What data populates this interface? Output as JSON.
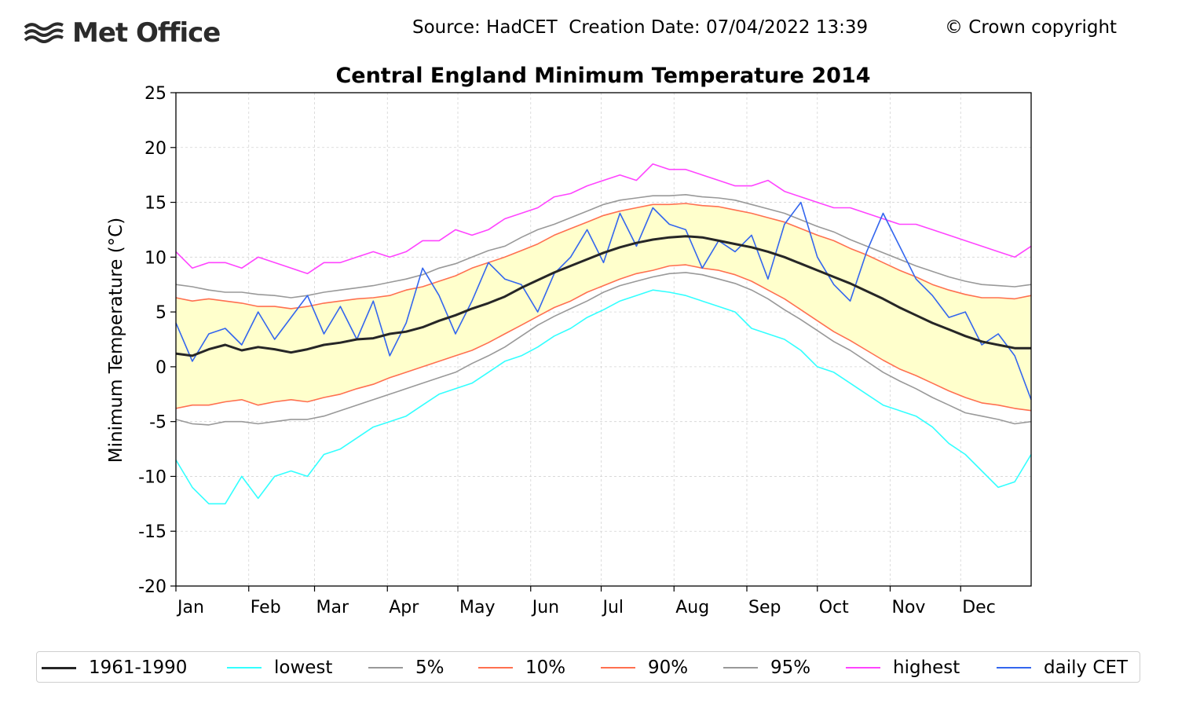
{
  "header": {
    "brand": "Met Office",
    "source": "Source: HadCET  Creation Date: 07/04/2022 13:39",
    "copyright": "© Crown copyright"
  },
  "icons": {
    "logo": "met-office-wave-icon"
  },
  "legend": {
    "items": [
      {
        "label": "1961-1990",
        "color": "#262626"
      },
      {
        "label": "lowest",
        "color": "#33ffff"
      },
      {
        "label": "5%",
        "color": "#999999"
      },
      {
        "label": "10%",
        "color": "#ff7050"
      },
      {
        "label": "90%",
        "color": "#ff7050"
      },
      {
        "label": "95%",
        "color": "#999999"
      },
      {
        "label": "highest",
        "color": "#ff44ff"
      },
      {
        "label": "daily CET",
        "color": "#3366ee"
      }
    ]
  },
  "chart_data": {
    "type": "line",
    "title": "Central England Minimum Temperature 2014",
    "ylabel": "Minimum Temperature (°C)",
    "xlabel": "",
    "ylim": [
      -20,
      25
    ],
    "yticks": [
      25,
      20,
      15,
      10,
      5,
      0,
      -5,
      -10,
      -15,
      -20
    ],
    "ytick_labels": [
      "25",
      "20",
      "15",
      "10",
      "5",
      "0",
      "-5",
      "-10",
      "-15",
      "-20"
    ],
    "months": [
      "Jan",
      "Feb",
      "Mar",
      "Apr",
      "May",
      "Jun",
      "Jul",
      "Aug",
      "Sep",
      "Oct",
      "Nov",
      "Dec"
    ],
    "month_start_day": [
      1,
      32,
      60,
      91,
      121,
      152,
      182,
      213,
      244,
      274,
      305,
      335
    ],
    "xlim": [
      1,
      365
    ],
    "grid": true,
    "shaded_band": {
      "between": [
        "10%",
        "90%"
      ],
      "color": "#ffffcc"
    },
    "legend_position": "bottom",
    "sample_interval_days": 7,
    "x": [
      1,
      8,
      15,
      22,
      29,
      36,
      43,
      50,
      57,
      64,
      71,
      78,
      85,
      92,
      99,
      106,
      113,
      120,
      127,
      134,
      141,
      148,
      155,
      162,
      169,
      176,
      183,
      190,
      197,
      204,
      211,
      218,
      225,
      232,
      239,
      246,
      253,
      260,
      267,
      274,
      281,
      288,
      295,
      302,
      309,
      316,
      323,
      330,
      337,
      344,
      351,
      358,
      365
    ],
    "series": [
      {
        "name": "1961-1990",
        "color": "#262626",
        "values": [
          1.2,
          1.0,
          1.6,
          2.0,
          1.5,
          1.8,
          1.6,
          1.3,
          1.6,
          2.0,
          2.2,
          2.5,
          2.6,
          3.0,
          3.2,
          3.6,
          4.2,
          4.7,
          5.3,
          5.8,
          6.4,
          7.2,
          7.9,
          8.6,
          9.2,
          9.8,
          10.4,
          10.9,
          11.3,
          11.6,
          11.8,
          11.9,
          11.8,
          11.5,
          11.2,
          10.9,
          10.5,
          10.0,
          9.4,
          8.8,
          8.2,
          7.6,
          6.9,
          6.2,
          5.4,
          4.7,
          4.0,
          3.4,
          2.8,
          2.3,
          2.0,
          1.7,
          1.7
        ]
      },
      {
        "name": "lowest",
        "color": "#33ffff",
        "values": [
          -8.5,
          -11.0,
          -12.5,
          -12.5,
          -10.0,
          -12.0,
          -10.0,
          -9.5,
          -10.0,
          -8.0,
          -7.5,
          -6.5,
          -5.5,
          -5.0,
          -4.5,
          -3.5,
          -2.5,
          -2.0,
          -1.5,
          -0.5,
          0.5,
          1.0,
          1.8,
          2.8,
          3.5,
          4.5,
          5.2,
          6.0,
          6.5,
          7.0,
          6.8,
          6.5,
          6.0,
          5.5,
          5.0,
          3.5,
          3.0,
          2.5,
          1.5,
          0.0,
          -0.5,
          -1.5,
          -2.5,
          -3.5,
          -4.0,
          -4.5,
          -5.5,
          -7.0,
          -8.0,
          -9.5,
          -11.0,
          -10.5,
          -8.0
        ]
      },
      {
        "name": "5%",
        "color": "#999999",
        "values": [
          -4.8,
          -5.2,
          -5.3,
          -5.0,
          -5.0,
          -5.2,
          -5.0,
          -4.8,
          -4.8,
          -4.5,
          -4.0,
          -3.5,
          -3.0,
          -2.5,
          -2.0,
          -1.5,
          -1.0,
          -0.5,
          0.3,
          1.0,
          1.8,
          2.8,
          3.8,
          4.6,
          5.3,
          6.0,
          6.8,
          7.4,
          7.8,
          8.2,
          8.5,
          8.6,
          8.4,
          8.0,
          7.6,
          7.0,
          6.2,
          5.2,
          4.3,
          3.3,
          2.3,
          1.5,
          0.5,
          -0.5,
          -1.3,
          -2.0,
          -2.8,
          -3.5,
          -4.2,
          -4.5,
          -4.8,
          -5.2,
          -5.0
        ]
      },
      {
        "name": "10%",
        "color": "#ff7050",
        "values": [
          -3.8,
          -3.5,
          -3.5,
          -3.2,
          -3.0,
          -3.5,
          -3.2,
          -3.0,
          -3.2,
          -2.8,
          -2.5,
          -2.0,
          -1.6,
          -1.0,
          -0.5,
          0.0,
          0.5,
          1.0,
          1.5,
          2.2,
          3.0,
          3.8,
          4.6,
          5.4,
          6.0,
          6.8,
          7.4,
          8.0,
          8.5,
          8.8,
          9.2,
          9.3,
          9.0,
          8.8,
          8.4,
          7.8,
          7.0,
          6.2,
          5.2,
          4.2,
          3.2,
          2.4,
          1.5,
          0.6,
          -0.2,
          -0.8,
          -1.5,
          -2.2,
          -2.8,
          -3.3,
          -3.5,
          -3.8,
          -4.0
        ]
      },
      {
        "name": "90%",
        "color": "#ff7050",
        "values": [
          6.3,
          6.0,
          6.2,
          6.0,
          5.8,
          5.5,
          5.5,
          5.3,
          5.5,
          5.8,
          6.0,
          6.2,
          6.3,
          6.5,
          7.0,
          7.3,
          7.8,
          8.3,
          9.0,
          9.5,
          10.0,
          10.6,
          11.2,
          12.0,
          12.6,
          13.2,
          13.8,
          14.2,
          14.5,
          14.8,
          14.8,
          14.9,
          14.7,
          14.6,
          14.3,
          14.0,
          13.6,
          13.2,
          12.6,
          12.0,
          11.5,
          10.8,
          10.2,
          9.5,
          8.8,
          8.2,
          7.5,
          7.0,
          6.6,
          6.3,
          6.3,
          6.2,
          6.5
        ]
      },
      {
        "name": "95%",
        "color": "#999999",
        "values": [
          7.5,
          7.3,
          7.0,
          6.8,
          6.8,
          6.6,
          6.5,
          6.3,
          6.5,
          6.8,
          7.0,
          7.2,
          7.4,
          7.7,
          8.0,
          8.4,
          9.0,
          9.4,
          10.0,
          10.6,
          11.0,
          11.8,
          12.5,
          13.0,
          13.6,
          14.2,
          14.8,
          15.2,
          15.4,
          15.6,
          15.6,
          15.7,
          15.5,
          15.4,
          15.2,
          14.8,
          14.4,
          14.0,
          13.4,
          12.8,
          12.3,
          11.6,
          11.0,
          10.4,
          9.8,
          9.2,
          8.7,
          8.2,
          7.8,
          7.5,
          7.4,
          7.3,
          7.5
        ]
      },
      {
        "name": "highest",
        "color": "#ff44ff",
        "values": [
          10.5,
          9.0,
          9.5,
          9.5,
          9.0,
          10.0,
          9.5,
          9.0,
          8.5,
          9.5,
          9.5,
          10.0,
          10.5,
          10.0,
          10.5,
          11.5,
          11.5,
          12.5,
          12.0,
          12.5,
          13.5,
          14.0,
          14.5,
          15.5,
          15.8,
          16.5,
          17.0,
          17.5,
          17.0,
          18.5,
          18.0,
          18.0,
          17.5,
          17.0,
          16.5,
          16.5,
          17.0,
          16.0,
          15.5,
          15.0,
          14.5,
          14.5,
          14.0,
          13.5,
          13.0,
          13.0,
          12.5,
          12.0,
          11.5,
          11.0,
          10.5,
          10.0,
          11.0
        ]
      },
      {
        "name": "daily CET",
        "color": "#3366ee",
        "values": [
          4.0,
          0.5,
          3.0,
          3.5,
          2.0,
          5.0,
          2.5,
          4.5,
          6.5,
          3.0,
          5.5,
          2.5,
          6.0,
          1.0,
          4.0,
          9.0,
          6.5,
          3.0,
          6.0,
          9.5,
          8.0,
          7.5,
          5.0,
          8.5,
          10.0,
          12.5,
          9.5,
          14.0,
          11.0,
          14.5,
          13.0,
          12.5,
          9.0,
          11.5,
          10.5,
          12.0,
          8.0,
          13.0,
          15.0,
          10.0,
          7.5,
          6.0,
          10.5,
          14.0,
          11.0,
          8.0,
          6.5,
          4.5,
          5.0,
          2.0,
          3.0,
          1.0,
          -3.0
        ]
      }
    ]
  }
}
